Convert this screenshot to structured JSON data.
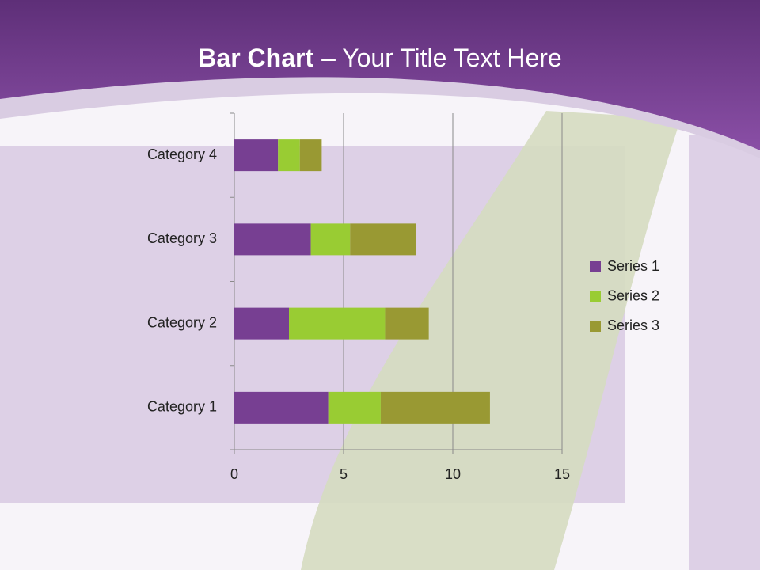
{
  "chart_data": {
    "type": "bar",
    "orientation": "horizontal",
    "stacked": true,
    "title_bold": "Bar Chart",
    "title_rest": "– Your Title Text Here",
    "categories": [
      "Category 1",
      "Category 2",
      "Category 3",
      "Category 4"
    ],
    "series": [
      {
        "name": "Series 1",
        "color": "#773f92",
        "values": [
          4.3,
          2.5,
          3.5,
          2
        ]
      },
      {
        "name": "Series 2",
        "color": "#99cc33",
        "values": [
          2.4,
          4.4,
          1.8,
          1
        ]
      },
      {
        "name": "Series 3",
        "color": "#999933",
        "values": [
          5,
          2,
          3,
          1
        ]
      }
    ],
    "xlim": [
      0,
      15
    ],
    "xticks": [
      0,
      5,
      10,
      15
    ],
    "grid": true,
    "legend": "right"
  }
}
